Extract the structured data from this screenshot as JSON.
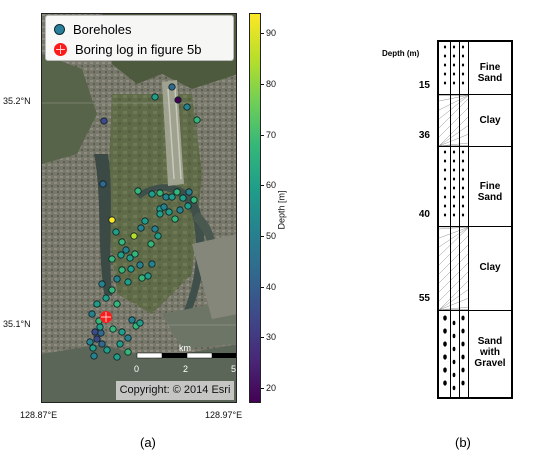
{
  "map_panel": {
    "caption": "(a)",
    "legend": {
      "boreholes_label": "Boreholes",
      "boring_log_label": "Boring log in figure 5b"
    },
    "latitude_labels": [
      "35.2°N",
      "35.1°N"
    ],
    "longitude_labels": [
      "128.87°E",
      "128.97°E"
    ],
    "scalebar": {
      "unit": "km",
      "ticks": [
        "0",
        "2",
        "5"
      ]
    },
    "copyright": "Copyright: © 2014 Esri",
    "colorbar": {
      "title": "Depth [m]",
      "ticks": [
        "90",
        "80",
        "70",
        "60",
        "50",
        "40",
        "30",
        "20"
      ],
      "colormap": "viridis",
      "range": [
        17,
        94
      ]
    },
    "colors": {
      "borehole_marker": "#2a7f9a",
      "boring_log_marker": "#ff1a1a"
    }
  },
  "log_panel": {
    "caption": "(b)",
    "depth_header": "Depth (m)",
    "depth_marks": [
      "15",
      "36",
      "40",
      "55"
    ],
    "layers": [
      {
        "name": "Fine Sand",
        "pattern": "sand-fine"
      },
      {
        "name": "Clay",
        "pattern": "clay"
      },
      {
        "name": "Fine Sand",
        "pattern": "sand-fine"
      },
      {
        "name": "Clay",
        "pattern": "clay"
      },
      {
        "name": "Sand with Gravel",
        "pattern": "gravel"
      }
    ]
  }
}
